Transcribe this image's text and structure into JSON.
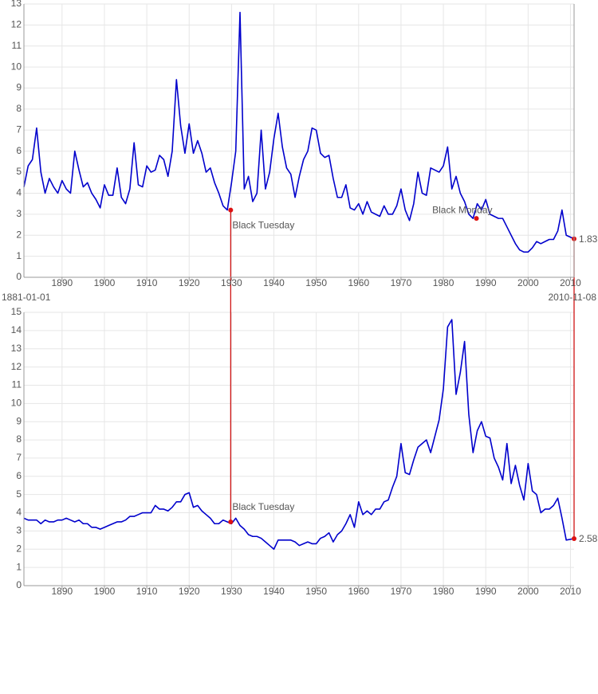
{
  "chart_data": [
    {
      "type": "line",
      "x": [
        1881,
        1882,
        1883,
        1884,
        1885,
        1886,
        1887,
        1888,
        1889,
        1890,
        1891,
        1892,
        1893,
        1894,
        1895,
        1896,
        1897,
        1898,
        1899,
        1900,
        1901,
        1902,
        1903,
        1904,
        1905,
        1906,
        1907,
        1908,
        1909,
        1910,
        1911,
        1912,
        1913,
        1914,
        1915,
        1916,
        1917,
        1918,
        1919,
        1920,
        1921,
        1922,
        1923,
        1924,
        1925,
        1926,
        1927,
        1928,
        1929,
        1930,
        1931,
        1932,
        1933,
        1934,
        1935,
        1936,
        1937,
        1938,
        1939,
        1940,
        1941,
        1942,
        1943,
        1944,
        1945,
        1946,
        1947,
        1948,
        1949,
        1950,
        1951,
        1952,
        1953,
        1954,
        1955,
        1956,
        1957,
        1958,
        1959,
        1960,
        1961,
        1962,
        1963,
        1964,
        1965,
        1966,
        1967,
        1968,
        1969,
        1970,
        1971,
        1972,
        1973,
        1974,
        1975,
        1976,
        1977,
        1978,
        1979,
        1980,
        1981,
        1982,
        1983,
        1984,
        1985,
        1986,
        1987,
        1988,
        1989,
        1990,
        1991,
        1992,
        1993,
        1994,
        1995,
        1996,
        1997,
        1998,
        1999,
        2000,
        2001,
        2002,
        2003,
        2004,
        2005,
        2006,
        2007,
        2008,
        2009,
        2010.85
      ],
      "series": [
        {
          "color": "#0000cc",
          "values": [
            4.3,
            5.3,
            5.6,
            7.1,
            5.0,
            4.0,
            4.7,
            4.3,
            4.0,
            4.6,
            4.2,
            4.0,
            6.0,
            5.1,
            4.3,
            4.5,
            4.0,
            3.7,
            3.3,
            4.4,
            3.9,
            3.9,
            5.2,
            3.8,
            3.5,
            4.2,
            6.4,
            4.4,
            4.3,
            5.3,
            5.0,
            5.1,
            5.8,
            5.6,
            4.8,
            6.0,
            9.4,
            7.2,
            5.9,
            7.3,
            5.9,
            6.5,
            5.9,
            5.0,
            5.2,
            4.5,
            4.0,
            3.4,
            3.2,
            4.5,
            6.0,
            12.6,
            4.2,
            4.8,
            3.6,
            4.0,
            7.0,
            4.2,
            5.0,
            6.6,
            7.8,
            6.2,
            5.2,
            4.9,
            3.8,
            4.8,
            5.6,
            6.0,
            7.1,
            7.0,
            5.9,
            5.7,
            5.8,
            4.7,
            3.8,
            3.8,
            4.4,
            3.3,
            3.2,
            3.5,
            3.0,
            3.6,
            3.1,
            3.0,
            2.9,
            3.4,
            3.0,
            3.0,
            3.4,
            4.2,
            3.2,
            2.7,
            3.5,
            5.0,
            4.0,
            3.9,
            5.2,
            5.1,
            5.0,
            5.3,
            6.2,
            4.2,
            4.8,
            4.0,
            3.6,
            3.0,
            2.8,
            3.5,
            3.2,
            3.7,
            3.0,
            2.9,
            2.8,
            2.8,
            2.4,
            2.0,
            1.6,
            1.3,
            1.2,
            1.2,
            1.4,
            1.7,
            1.6,
            1.7,
            1.8,
            1.8,
            2.2,
            3.2,
            2.0,
            1.83
          ]
        }
      ],
      "annotations": [
        {
          "label": "Black Tuesday",
          "x": 1929.8,
          "y": 3.2
        },
        {
          "label": "Black Monday",
          "x": 1987.8,
          "y": 2.8
        },
        {
          "label": "1.83",
          "x": 2010.85,
          "y": 1.83
        }
      ],
      "marker_color": "#dd1111",
      "xlim": [
        {
          "value": 1881,
          "label": "1881-01-01"
        },
        {
          "value": 2010.85,
          "label": "2010-11-08"
        }
      ],
      "xticks": [
        1890,
        1900,
        1910,
        1920,
        1930,
        1940,
        1950,
        1960,
        1970,
        1980,
        1990,
        2000,
        2010
      ],
      "ylim": [
        0,
        13
      ],
      "yticks": [
        0,
        1,
        2,
        3,
        4,
        5,
        6,
        7,
        8,
        9,
        10,
        11,
        12,
        13
      ],
      "grid": true
    },
    {
      "type": "line",
      "x": [
        1881,
        1882,
        1883,
        1884,
        1885,
        1886,
        1887,
        1888,
        1889,
        1890,
        1891,
        1892,
        1893,
        1894,
        1895,
        1896,
        1897,
        1898,
        1899,
        1900,
        1901,
        1902,
        1903,
        1904,
        1905,
        1906,
        1907,
        1908,
        1909,
        1910,
        1911,
        1912,
        1913,
        1914,
        1915,
        1916,
        1917,
        1918,
        1919,
        1920,
        1921,
        1922,
        1923,
        1924,
        1925,
        1926,
        1927,
        1928,
        1929,
        1930,
        1931,
        1932,
        1933,
        1934,
        1935,
        1936,
        1937,
        1938,
        1939,
        1940,
        1941,
        1942,
        1943,
        1944,
        1945,
        1946,
        1947,
        1948,
        1949,
        1950,
        1951,
        1952,
        1953,
        1954,
        1955,
        1956,
        1957,
        1958,
        1959,
        1960,
        1961,
        1962,
        1963,
        1964,
        1965,
        1966,
        1967,
        1968,
        1969,
        1970,
        1971,
        1972,
        1973,
        1974,
        1975,
        1976,
        1977,
        1978,
        1979,
        1980,
        1981,
        1982,
        1983,
        1984,
        1985,
        1986,
        1987,
        1988,
        1989,
        1990,
        1991,
        1992,
        1993,
        1994,
        1995,
        1996,
        1997,
        1998,
        1999,
        2000,
        2001,
        2002,
        2003,
        2004,
        2005,
        2006,
        2007,
        2008,
        2009,
        2010.85
      ],
      "series": [
        {
          "color": "#0000cc",
          "values": [
            3.7,
            3.6,
            3.6,
            3.6,
            3.4,
            3.6,
            3.5,
            3.5,
            3.6,
            3.6,
            3.7,
            3.6,
            3.5,
            3.6,
            3.4,
            3.4,
            3.2,
            3.2,
            3.1,
            3.2,
            3.3,
            3.4,
            3.5,
            3.5,
            3.6,
            3.8,
            3.8,
            3.9,
            4.0,
            4.0,
            4.0,
            4.4,
            4.2,
            4.2,
            4.1,
            4.3,
            4.6,
            4.6,
            5.0,
            5.1,
            4.3,
            4.4,
            4.1,
            3.9,
            3.7,
            3.4,
            3.4,
            3.6,
            3.5,
            3.4,
            3.7,
            3.3,
            3.1,
            2.8,
            2.7,
            2.7,
            2.6,
            2.4,
            2.2,
            2.0,
            2.5,
            2.5,
            2.5,
            2.5,
            2.4,
            2.2,
            2.3,
            2.4,
            2.3,
            2.3,
            2.6,
            2.7,
            2.9,
            2.4,
            2.8,
            3.0,
            3.4,
            3.9,
            3.2,
            4.6,
            3.9,
            4.1,
            3.9,
            4.2,
            4.2,
            4.6,
            4.7,
            5.4,
            6.0,
            7.8,
            6.2,
            6.1,
            6.9,
            7.6,
            7.8,
            8.0,
            7.3,
            8.2,
            9.1,
            10.8,
            14.2,
            14.6,
            10.5,
            11.7,
            13.4,
            9.4,
            7.3,
            8.5,
            9.0,
            8.2,
            8.1,
            7.0,
            6.5,
            5.8,
            7.8,
            5.6,
            6.6,
            5.5,
            4.7,
            6.7,
            5.2,
            5.0,
            4.0,
            4.2,
            4.2,
            4.4,
            4.8,
            3.7,
            2.5,
            2.58
          ]
        }
      ],
      "annotations": [
        {
          "label": "Black Tuesday",
          "x": 1929.8,
          "y": 3.5
        },
        {
          "label": "2.58",
          "x": 2010.85,
          "y": 2.58
        }
      ],
      "marker_color": "#dd1111",
      "xlim": [
        1881,
        2010.85
      ],
      "xticks": [
        1890,
        1900,
        1910,
        1920,
        1930,
        1940,
        1950,
        1960,
        1970,
        1980,
        1990,
        2000,
        2010
      ],
      "ylim": [
        0,
        15
      ],
      "yticks": [
        0,
        1,
        2,
        3,
        4,
        5,
        6,
        7,
        8,
        9,
        10,
        11,
        12,
        13,
        14,
        15
      ],
      "grid": true
    }
  ]
}
